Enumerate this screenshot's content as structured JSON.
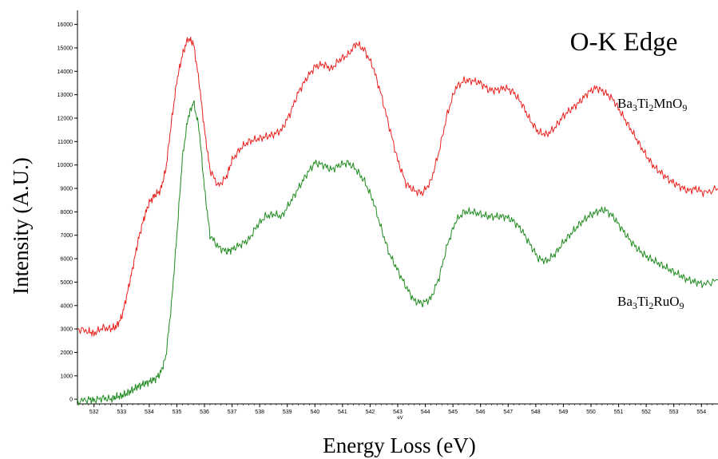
{
  "chart_data": {
    "type": "line",
    "title": "O-K Edge",
    "xlabel": "Energy Loss (eV)",
    "ylabel": "Intensity (A.U.)",
    "x_unit_label": "eV",
    "xlim": [
      531.4,
      554.6
    ],
    "ylim": [
      -200,
      16600
    ],
    "x_ticks": [
      532,
      533,
      534,
      535,
      536,
      537,
      538,
      539,
      540,
      541,
      542,
      543,
      544,
      545,
      546,
      547,
      548,
      549,
      550,
      551,
      552,
      553,
      554
    ],
    "y_ticks": [
      0,
      1000,
      2000,
      3000,
      4000,
      5000,
      6000,
      7000,
      8000,
      9000,
      10000,
      11000,
      12000,
      13000,
      14000,
      15000,
      16000
    ],
    "legend": "inline labels",
    "series": [
      {
        "name": "Ba3Ti2MnO9",
        "label_main": [
          "Ba",
          "3",
          "Ti",
          "2",
          "MnO",
          "9"
        ],
        "color": "#e8211e",
        "x": [
          531.4,
          531.8,
          532.0,
          532.3,
          532.6,
          532.8,
          533.0,
          533.2,
          533.4,
          533.6,
          533.8,
          534.0,
          534.2,
          534.4,
          534.6,
          534.8,
          535.0,
          535.2,
          535.4,
          535.6,
          535.8,
          536.0,
          536.2,
          536.5,
          536.8,
          537.0,
          537.3,
          537.6,
          537.9,
          538.2,
          538.5,
          538.8,
          539.1,
          539.4,
          539.7,
          540.0,
          540.3,
          540.6,
          540.9,
          541.2,
          541.5,
          541.8,
          542.1,
          542.4,
          542.7,
          543.0,
          543.3,
          543.6,
          543.9,
          544.2,
          544.5,
          544.8,
          545.1,
          545.4,
          545.7,
          546.0,
          546.3,
          546.6,
          546.9,
          547.2,
          547.5,
          547.8,
          548.1,
          548.4,
          548.7,
          549.0,
          549.3,
          549.6,
          549.9,
          550.2,
          550.5,
          550.8,
          551.1,
          551.4,
          551.7,
          552.0,
          552.3,
          552.6,
          552.9,
          553.2,
          553.5,
          553.8,
          554.1,
          554.6
        ],
        "y": [
          3000,
          2900,
          2800,
          3050,
          3000,
          3100,
          3500,
          4500,
          5600,
          6800,
          7700,
          8400,
          8700,
          8900,
          9800,
          11800,
          13600,
          14700,
          15400,
          15200,
          13600,
          11500,
          9800,
          9100,
          9500,
          10200,
          10700,
          11000,
          11100,
          11200,
          11300,
          11500,
          12200,
          13100,
          13700,
          14200,
          14300,
          14100,
          14500,
          14700,
          15200,
          14900,
          14200,
          13000,
          11600,
          10200,
          9200,
          8900,
          8800,
          9300,
          10600,
          12200,
          13300,
          13600,
          13600,
          13500,
          13200,
          13200,
          13300,
          13100,
          12600,
          11900,
          11400,
          11300,
          11600,
          12100,
          12400,
          12700,
          13100,
          13300,
          13100,
          12800,
          12200,
          11600,
          11000,
          10400,
          9900,
          9600,
          9300,
          9100,
          8900,
          9000,
          8800,
          9000
        ]
      },
      {
        "name": "Ba3Ti2RuO9",
        "label_main": [
          "Ba",
          "3",
          "Ti",
          "2",
          "RuO",
          "9"
        ],
        "color": "#1f8b1f",
        "x": [
          531.4,
          531.8,
          532.0,
          532.3,
          532.6,
          532.8,
          533.0,
          533.2,
          533.4,
          533.6,
          533.8,
          534.0,
          534.2,
          534.4,
          534.6,
          534.8,
          535.0,
          535.2,
          535.4,
          535.6,
          535.8,
          536.0,
          536.2,
          536.5,
          536.8,
          537.0,
          537.3,
          537.6,
          537.9,
          538.2,
          538.5,
          538.8,
          539.1,
          539.4,
          539.7,
          540.0,
          540.3,
          540.6,
          540.9,
          541.2,
          541.5,
          541.8,
          542.1,
          542.4,
          542.7,
          543.0,
          543.3,
          543.6,
          543.9,
          544.2,
          544.5,
          544.8,
          545.1,
          545.4,
          545.7,
          546.0,
          546.3,
          546.6,
          546.9,
          547.2,
          547.5,
          547.8,
          548.1,
          548.4,
          548.7,
          549.0,
          549.3,
          549.6,
          549.9,
          550.2,
          550.5,
          550.8,
          551.1,
          551.4,
          551.7,
          552.0,
          552.3,
          552.6,
          552.9,
          553.2,
          553.5,
          553.8,
          554.1,
          554.6
        ],
        "y": [
          -100,
          0,
          -50,
          50,
          0,
          100,
          150,
          250,
          400,
          550,
          650,
          750,
          850,
          1100,
          1800,
          4000,
          7000,
          10300,
          12000,
          12700,
          11600,
          9000,
          7000,
          6500,
          6300,
          6400,
          6600,
          6800,
          7400,
          7800,
          7900,
          7800,
          8400,
          9000,
          9600,
          10100,
          10000,
          9800,
          10000,
          10100,
          9800,
          9300,
          8500,
          7300,
          6200,
          5500,
          4800,
          4200,
          4100,
          4300,
          5200,
          6600,
          7600,
          8000,
          8000,
          7900,
          7800,
          7800,
          7800,
          7600,
          7200,
          6600,
          6000,
          5900,
          6200,
          6700,
          7100,
          7500,
          7800,
          8000,
          8100,
          7800,
          7300,
          6800,
          6400,
          6100,
          5900,
          5700,
          5500,
          5300,
          5100,
          5000,
          4900,
          5100
        ]
      }
    ]
  }
}
